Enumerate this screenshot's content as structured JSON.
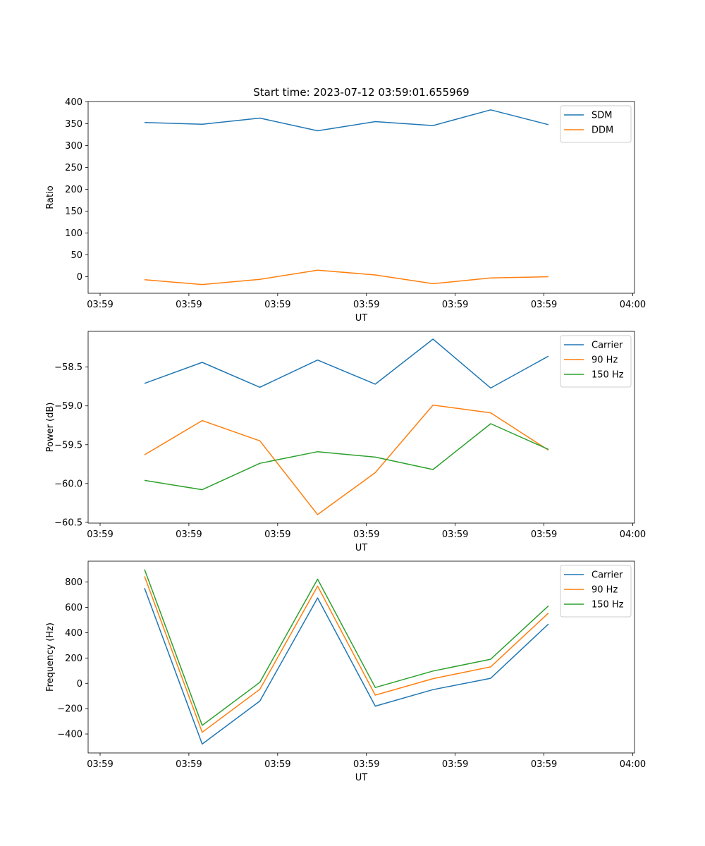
{
  "title": "Start time: 2023-07-12 03:59:01.655969",
  "chart_data": [
    {
      "type": "line",
      "ylabel": "Ratio",
      "xlabel": "UT",
      "ylim": [
        -38,
        401
      ],
      "yticks": [
        0,
        50,
        100,
        150,
        200,
        250,
        300,
        350,
        400
      ],
      "ytick_labels": [
        "0",
        "50",
        "100",
        "150",
        "200",
        "250",
        "300",
        "350",
        "400"
      ],
      "xticks": [
        0,
        1,
        2,
        3,
        4,
        5,
        6
      ],
      "xtick_labels": [
        "03:59",
        "03:59",
        "03:59",
        "03:59",
        "03:59",
        "03:59",
        "04:00"
      ],
      "xlim": [
        -0.135,
        6.02
      ],
      "x": [
        0.5,
        1.15,
        1.8,
        2.45,
        3.1,
        3.75,
        4.4,
        5.05
      ],
      "series": [
        {
          "name": "SDM",
          "color": "#1f77b4",
          "values": [
            353,
            349,
            363,
            334,
            355,
            346,
            382,
            348
          ]
        },
        {
          "name": "DDM",
          "color": "#ff7f0e",
          "values": [
            -7,
            -18,
            -6,
            15,
            4,
            -16,
            -3,
            0
          ]
        }
      ],
      "legend": "top-right"
    },
    {
      "type": "line",
      "ylabel": "Power (dB)",
      "xlabel": "UT",
      "ylim": [
        -60.51,
        -58.04
      ],
      "yticks": [
        -60.5,
        -60.0,
        -59.5,
        -59.0,
        -58.5
      ],
      "ytick_labels": [
        "−60.5",
        "−60.0",
        "−59.5",
        "−59.0",
        "−58.5"
      ],
      "xticks": [
        0,
        1,
        2,
        3,
        4,
        5,
        6
      ],
      "xtick_labels": [
        "03:59",
        "03:59",
        "03:59",
        "03:59",
        "03:59",
        "03:59",
        "04:00"
      ],
      "xlim": [
        -0.135,
        6.02
      ],
      "x": [
        0.5,
        1.15,
        1.8,
        2.45,
        3.1,
        3.75,
        4.4,
        5.05
      ],
      "series": [
        {
          "name": "Carrier",
          "color": "#1f77b4",
          "values": [
            -58.71,
            -58.44,
            -58.76,
            -58.41,
            -58.72,
            -58.14,
            -58.77,
            -58.36
          ]
        },
        {
          "name": "90 Hz",
          "color": "#ff7f0e",
          "values": [
            -59.63,
            -59.19,
            -59.45,
            -60.4,
            -59.86,
            -58.99,
            -59.09,
            -59.57
          ]
        },
        {
          "name": "150 Hz",
          "color": "#2ca02c",
          "values": [
            -59.96,
            -60.08,
            -59.74,
            -59.59,
            -59.66,
            -59.82,
            -59.23,
            -59.56
          ]
        }
      ],
      "legend": "top-right"
    },
    {
      "type": "line",
      "ylabel": "Frequency (Hz)",
      "xlabel": "UT",
      "ylim": [
        -550,
        965
      ],
      "yticks": [
        -400,
        -200,
        0,
        200,
        400,
        600,
        800
      ],
      "ytick_labels": [
        "−400",
        "−200",
        "0",
        "200",
        "400",
        "600",
        "800"
      ],
      "xticks": [
        0,
        1,
        2,
        3,
        4,
        5,
        6
      ],
      "xtick_labels": [
        "03:59",
        "03:59",
        "03:59",
        "03:59",
        "03:59",
        "03:59",
        "04:00"
      ],
      "xlim": [
        -0.135,
        6.02
      ],
      "x": [
        0.5,
        1.15,
        1.8,
        2.45,
        3.1,
        3.75,
        4.4,
        5.05
      ],
      "series": [
        {
          "name": "Carrier",
          "color": "#1f77b4",
          "values": [
            752,
            -480,
            -140,
            675,
            -180,
            -50,
            40,
            468
          ]
        },
        {
          "name": "90 Hz",
          "color": "#ff7f0e",
          "values": [
            845,
            -387,
            -47,
            768,
            -93,
            37,
            130,
            555
          ]
        },
        {
          "name": "150 Hz",
          "color": "#2ca02c",
          "values": [
            900,
            -332,
            8,
            823,
            -33,
            97,
            190,
            612
          ]
        }
      ],
      "legend": "top-right"
    }
  ]
}
